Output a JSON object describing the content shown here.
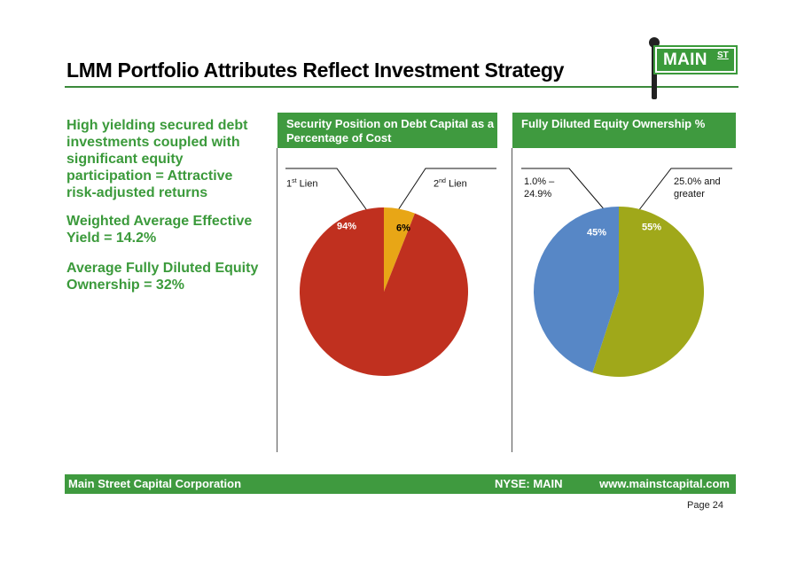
{
  "header": {
    "title": "LMM Portfolio Attributes Reflect Investment Strategy",
    "logo": {
      "main": "MAIN",
      "st": "ST"
    }
  },
  "bullets": [
    "High yielding secured debt investments coupled with significant equity participation = Attractive risk-adjusted returns",
    "Weighted Average Effective Yield = 14.2%",
    "Average Fully Diluted Equity Ownership = 32%"
  ],
  "panels": [
    {
      "header": "Security Position on Debt Capital as a Percentage of Cost",
      "label_left_pre": "1",
      "label_left_sup": "st",
      "label_left_post": " Lien",
      "label_right_pre": "2",
      "label_right_sup": "nd",
      "label_right_post": " Lien"
    },
    {
      "header": "Fully Diluted Equity Ownership %",
      "label_left": "1.0% – 24.9%",
      "label_right": "25.0% and greater"
    }
  ],
  "chart_data": [
    {
      "type": "pie",
      "title": "Security Position on Debt Capital as a Percentage of Cost",
      "slices": [
        {
          "label": "1st Lien",
          "value": 94,
          "display": "94%",
          "color": "#c0301f",
          "label_color": "#ffffff"
        },
        {
          "label": "2nd Lien",
          "value": 6,
          "display": "6%",
          "color": "#e8a616",
          "label_color": "#000000"
        }
      ]
    },
    {
      "type": "pie",
      "title": "Fully Diluted Equity Ownership %",
      "slices": [
        {
          "label": "25.0% and greater",
          "value": 55,
          "display": "55%",
          "color": "#a0a81a",
          "label_color": "#ffffff"
        },
        {
          "label": "1.0% – 24.9%",
          "value": 45,
          "display": "45%",
          "color": "#5787c6",
          "label_color": "#ffffff"
        }
      ]
    }
  ],
  "footer": {
    "company": "Main Street Capital Corporation",
    "ticker": "NYSE: MAIN",
    "url": "www.mainstcapital.com",
    "page": "Page 24"
  },
  "colors": {
    "brand_green": "#3f9a3f"
  }
}
